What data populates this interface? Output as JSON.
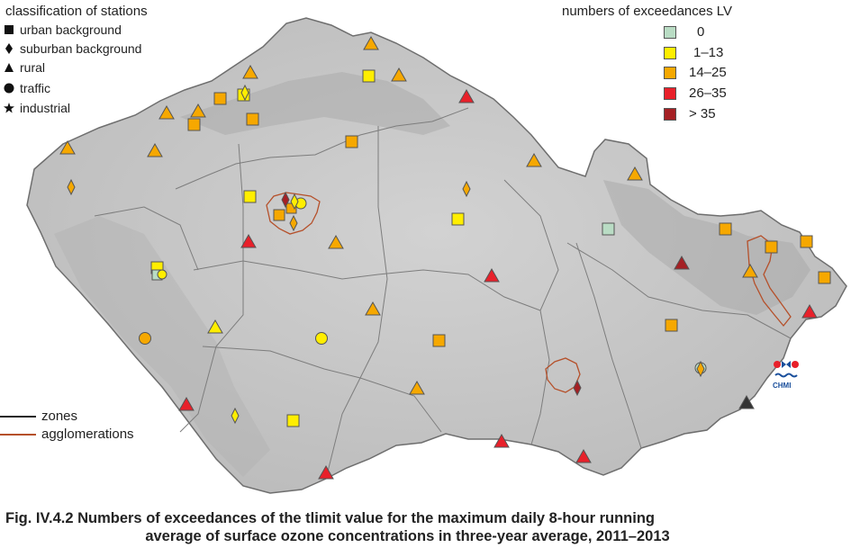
{
  "legend_classification": {
    "title": "classification of stations",
    "items": [
      {
        "label": "urban background",
        "shape": "square"
      },
      {
        "label": "suburban background",
        "shape": "diamond"
      },
      {
        "label": "rural",
        "shape": "triangle"
      },
      {
        "label": "traffic",
        "shape": "circle"
      },
      {
        "label": "industrial",
        "shape": "star"
      }
    ]
  },
  "legend_exceedances": {
    "title": "numbers of exceedances LV",
    "items": [
      {
        "label": "0",
        "color": "#b9dcc4"
      },
      {
        "label": "1–13",
        "color": "#ffee00"
      },
      {
        "label": "14–25",
        "color": "#f6a800"
      },
      {
        "label": "26–35",
        "color": "#e8202a"
      },
      {
        "label": "> 35",
        "color": "#a52024"
      }
    ]
  },
  "legend_lines": {
    "items": [
      {
        "label": "zones",
        "color": "#222222"
      },
      {
        "label": "agglomerations",
        "color": "#b5502a"
      }
    ]
  },
  "logo": {
    "text": "CHMI"
  },
  "caption": {
    "line1": "Fig. IV.4.2  Numbers of exceedances of the tlimit value for the maximum daily 8-hour running",
    "line2": "average of surface ozone concentrations in three-year average, 2011–2013"
  },
  "colors": {
    "map_fill": "#c9c9c9",
    "highlands": "#a9a9a9",
    "zone_line": "#7a7a7a",
    "agglomeration": "#b5502a"
  }
}
